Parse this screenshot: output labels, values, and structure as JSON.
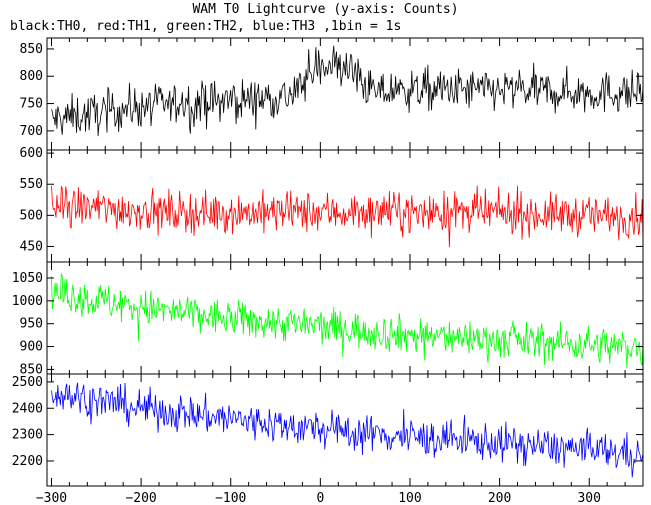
{
  "figure": {
    "title": "WAM T0 Lightcurve (y-axis: Counts)",
    "subtitle": "black:TH0, red:TH1, green:TH2, blue:TH3 ,1bin = 1s"
  },
  "chart_data": [
    {
      "type": "line",
      "name": "TH0",
      "color": "#000000",
      "xlim": [
        -305,
        360
      ],
      "ylim": [
        665,
        870
      ],
      "yticks": [
        700,
        750,
        800,
        850
      ],
      "xticks_labeled": false,
      "baseline": [
        [
          -300,
          720
        ],
        [
          -200,
          745
        ],
        [
          -100,
          755
        ],
        [
          -30,
          765
        ],
        [
          0,
          825
        ],
        [
          30,
          815
        ],
        [
          60,
          770
        ],
        [
          100,
          775
        ],
        [
          200,
          775
        ],
        [
          300,
          770
        ],
        [
          360,
          770
        ]
      ],
      "noise_amplitude": 38
    },
    {
      "type": "line",
      "name": "TH1",
      "color": "#ff0000",
      "xlim": [
        -305,
        360
      ],
      "ylim": [
        425,
        605
      ],
      "yticks": [
        450,
        500,
        550,
        600
      ],
      "xticks_labeled": false,
      "baseline": [
        [
          -300,
          515
        ],
        [
          -150,
          505
        ],
        [
          0,
          505
        ],
        [
          150,
          505
        ],
        [
          360,
          498
        ]
      ],
      "noise_amplitude": 32
    },
    {
      "type": "line",
      "name": "TH2",
      "color": "#00ff00",
      "xlim": [
        -305,
        360
      ],
      "ylim": [
        840,
        1085
      ],
      "yticks": [
        850,
        900,
        950,
        1000,
        1050
      ],
      "xticks_labeled": false,
      "baseline": [
        [
          -300,
          1020
        ],
        [
          -200,
          985
        ],
        [
          -100,
          960
        ],
        [
          0,
          945
        ],
        [
          100,
          925
        ],
        [
          200,
          915
        ],
        [
          300,
          905
        ],
        [
          360,
          895
        ]
      ],
      "noise_amplitude": 40
    },
    {
      "type": "line",
      "name": "TH3",
      "color": "#0000ff",
      "xlim": [
        -305,
        360
      ],
      "ylim": [
        2105,
        2530
      ],
      "yticks": [
        2200,
        2300,
        2400,
        2500
      ],
      "xticks_labeled": true,
      "xticks": [
        -300,
        -200,
        -100,
        0,
        100,
        200,
        300
      ],
      "baseline": [
        [
          -300,
          2460
        ],
        [
          -200,
          2400
        ],
        [
          -100,
          2360
        ],
        [
          0,
          2320
        ],
        [
          100,
          2290
        ],
        [
          200,
          2270
        ],
        [
          300,
          2240
        ],
        [
          360,
          2225
        ]
      ],
      "noise_amplitude": 70
    }
  ]
}
